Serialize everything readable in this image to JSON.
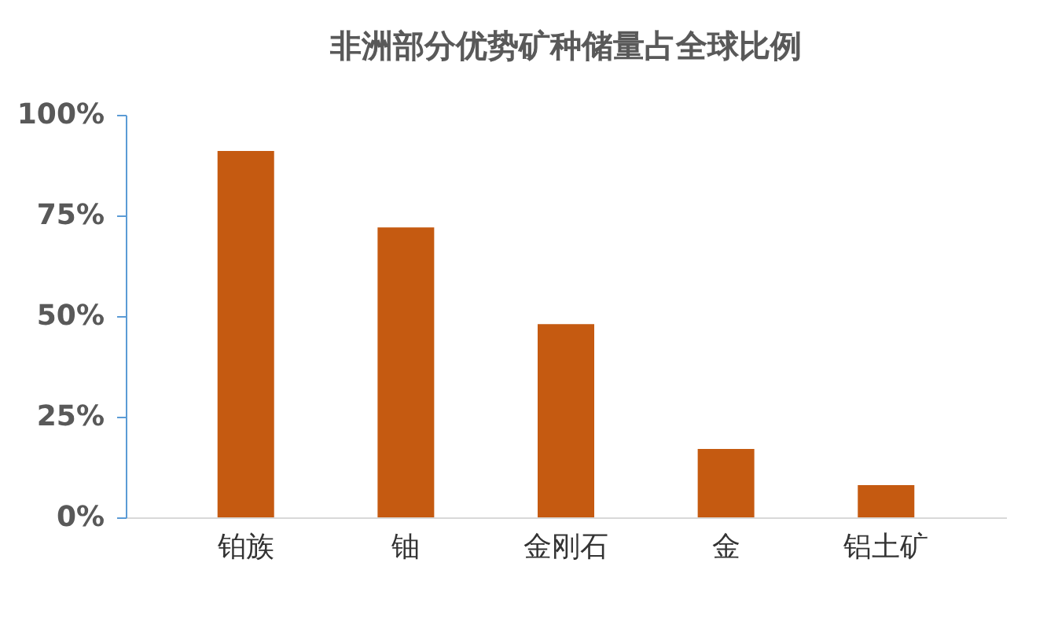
{
  "chart_data": {
    "type": "bar",
    "title": "非洲部分优势矿种储量占全球比例",
    "categories": [
      "铂族",
      "铀",
      "金刚石",
      "金",
      "铝土矿"
    ],
    "values": [
      91,
      72,
      48,
      17,
      8
    ],
    "color": "#c55a11",
    "ylim": [
      0,
      100
    ],
    "yticks": [
      {
        "value": 0,
        "label": "0%"
      },
      {
        "value": 25,
        "label": "25%"
      },
      {
        "value": 50,
        "label": "50%"
      },
      {
        "value": 75,
        "label": "75%"
      },
      {
        "value": 100,
        "label": "100%"
      }
    ],
    "grid": false
  }
}
